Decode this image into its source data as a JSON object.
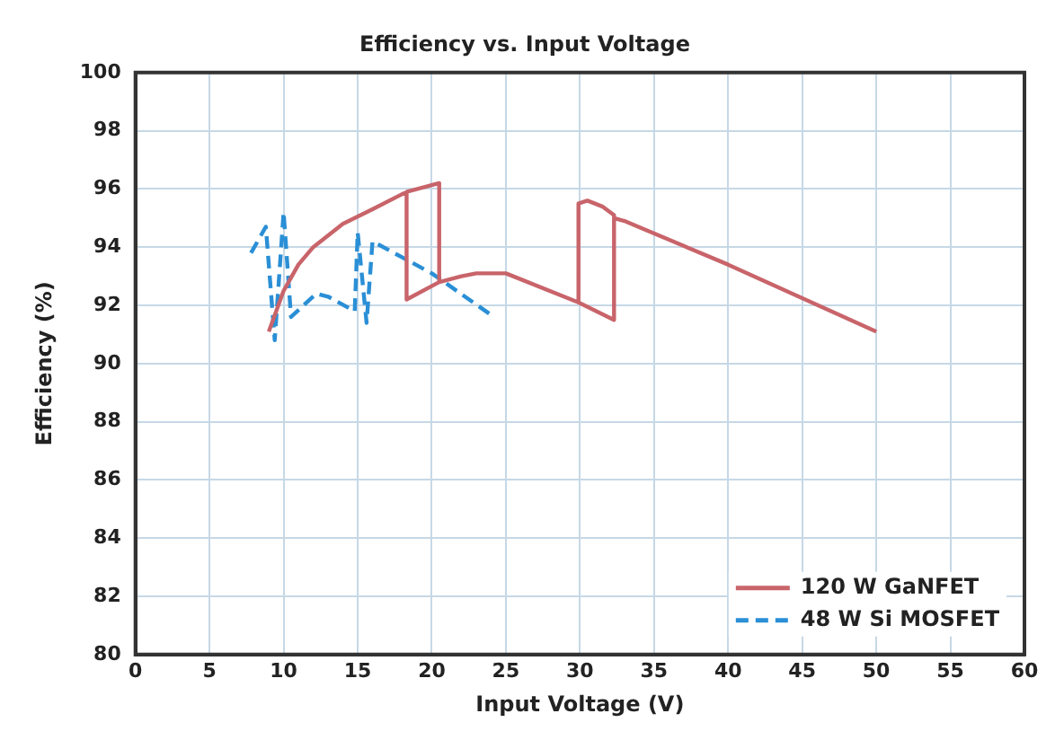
{
  "chart_data": {
    "type": "line",
    "title": "Efficiency vs. Input Voltage",
    "xlabel": "Input Voltage (V)",
    "ylabel": "Efficiency (%)",
    "xlim": [
      0,
      60
    ],
    "xticks": [
      0,
      5,
      10,
      15,
      20,
      25,
      30,
      35,
      40,
      45,
      50,
      55,
      60
    ],
    "ylim": [
      80,
      100
    ],
    "yticks": [
      80,
      82,
      84,
      86,
      88,
      90,
      92,
      94,
      96,
      98,
      100
    ],
    "grid": true,
    "legend": "bottom right",
    "marker": "none",
    "series": [
      {
        "name": "120 W GaNFET",
        "color": "#c8646a",
        "line_style": "solid",
        "x": [
          9,
          10,
          11,
          12,
          14,
          16,
          18.3,
          20.5,
          20.5,
          18.3,
          18.3,
          18.3,
          20.5,
          22,
          23,
          25,
          29.9,
          32.3,
          32.3,
          31.5,
          30.5,
          29.9,
          29.9,
          32.3,
          32.3,
          33,
          40,
          50
        ],
        "values": [
          91.1,
          92.5,
          93.4,
          94,
          94.8,
          95.3,
          95.9,
          96.2,
          92.8,
          92.2,
          95.9,
          92.2,
          92.8,
          93,
          93.1,
          93.1,
          92.1,
          91.5,
          95.1,
          95.4,
          95.6,
          95.5,
          92.1,
          91.5,
          95,
          94.9,
          93.4,
          91.1
        ]
      },
      {
        "name": "48 W Si MOSFET",
        "color": "#2a8fd6",
        "line_style": "dashed",
        "x": [
          7.8,
          8.8,
          9.4,
          10,
          10.5,
          12.2,
          13,
          14.8,
          15,
          15.6,
          16,
          20,
          24.2
        ],
        "values": [
          93.8,
          94.7,
          90.8,
          95.2,
          91.6,
          92.4,
          92.3,
          91.8,
          94.5,
          91.4,
          94.2,
          93.1,
          91.6
        ]
      }
    ]
  }
}
